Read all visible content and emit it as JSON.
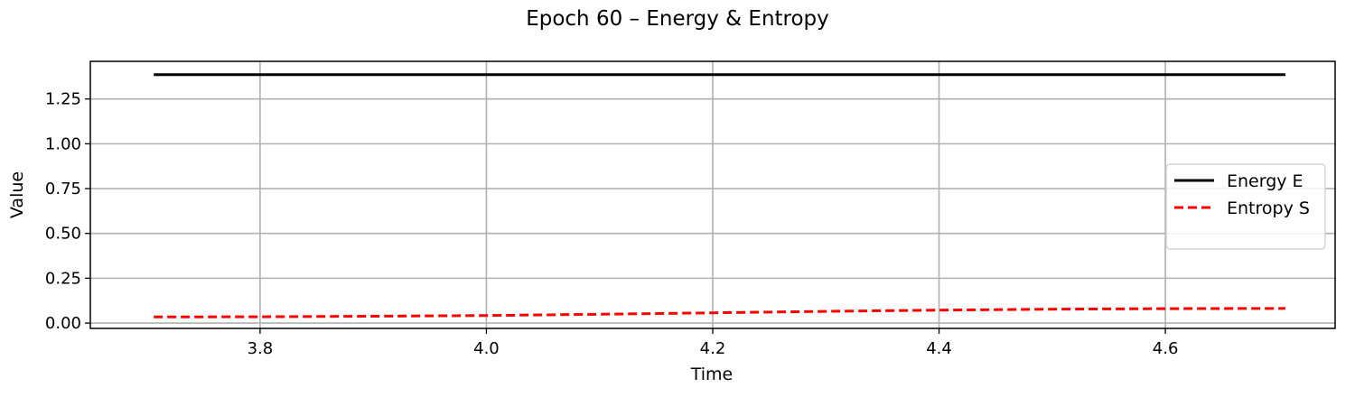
{
  "chart_data": {
    "type": "line",
    "title": "Epoch 60 – Energy & Entropy",
    "xlabel": "Time",
    "ylabel": "Value",
    "xlim": [
      3.65,
      4.75
    ],
    "ylim": [
      -0.03,
      1.46
    ],
    "xticks": [
      3.8,
      4.0,
      4.2,
      4.4,
      4.6
    ],
    "xtick_labels": [
      "3.8",
      "4.0",
      "4.2",
      "4.4",
      "4.6"
    ],
    "yticks": [
      0.0,
      0.25,
      0.5,
      0.75,
      1.0,
      1.25
    ],
    "ytick_labels": [
      "0.00",
      "0.25",
      "0.50",
      "0.75",
      "1.00",
      "1.25"
    ],
    "grid": true,
    "legend_position": "center-right",
    "series": [
      {
        "name": "Energy E",
        "color": "#000000",
        "style": "solid",
        "x": [
          3.706,
          3.9,
          4.1,
          4.3,
          4.5,
          4.706
        ],
        "y": [
          1.386,
          1.386,
          1.386,
          1.386,
          1.386,
          1.386
        ]
      },
      {
        "name": "Entropy S",
        "color": "#ff0000",
        "style": "dashed",
        "x": [
          3.706,
          3.8,
          3.9,
          4.0,
          4.1,
          4.2,
          4.3,
          4.4,
          4.5,
          4.6,
          4.706
        ],
        "y": [
          0.034,
          0.035,
          0.038,
          0.042,
          0.049,
          0.057,
          0.065,
          0.072,
          0.077,
          0.08,
          0.082
        ]
      }
    ]
  }
}
